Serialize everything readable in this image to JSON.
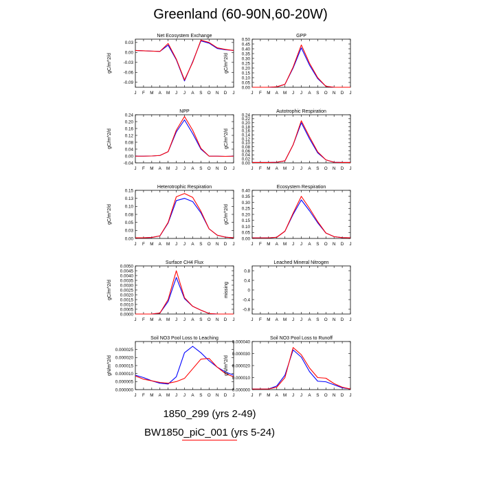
{
  "title": "Greenland (60-90N,60-20W)",
  "months": [
    "J",
    "F",
    "M",
    "A",
    "M",
    "J",
    "J",
    "A",
    "S",
    "O",
    "N",
    "D",
    "J"
  ],
  "colors": {
    "series1": "#0000ff",
    "series2": "#ff0000"
  },
  "legend": [
    {
      "label": "1850_299 (yrs 2-49)",
      "color": "#0000ff"
    },
    {
      "label": "BW1850_piC_001 (yrs 5-24)",
      "color": "#ff0000"
    }
  ],
  "chart_data": [
    {
      "type": "line",
      "title": "Net Ecosystem Exchange",
      "ylabel": "gC/m^2/d",
      "ylim": [
        -0.105,
        0.04
      ],
      "yticks": [
        0.03,
        0,
        -0.03,
        -0.06,
        -0.09
      ],
      "yticklabels": [
        "0.03",
        "0.00",
        "-0.03",
        "-0.06",
        "-0.09"
      ],
      "x": [
        1,
        2,
        3,
        4,
        5,
        6,
        7,
        8,
        9,
        10,
        11,
        12,
        13
      ],
      "series": [
        {
          "values": [
            0.006,
            0.005,
            0.004,
            0.003,
            0.022,
            -0.022,
            -0.086,
            -0.028,
            0.035,
            0.028,
            0.012,
            0.008,
            0.006
          ]
        },
        {
          "values": [
            0.006,
            0.005,
            0.004,
            0.003,
            0.027,
            -0.02,
            -0.083,
            -0.03,
            0.037,
            0.03,
            0.014,
            0.009,
            0.006
          ]
        }
      ]
    },
    {
      "type": "line",
      "title": "GPP",
      "ylabel": "gC/m^2/d",
      "ylim": [
        0,
        0.5
      ],
      "yticks": [
        0,
        0.05,
        0.1,
        0.15,
        0.2,
        0.25,
        0.3,
        0.35,
        0.4,
        0.45,
        0.5
      ],
      "yticklabels": [
        "0.00",
        "0.05",
        "0.10",
        "0.15",
        "0.20",
        "0.25",
        "0.30",
        "0.35",
        "0.40",
        "0.45",
        "0.50"
      ],
      "x": [
        1,
        2,
        3,
        4,
        5,
        6,
        7,
        8,
        9,
        10,
        11,
        12,
        13
      ],
      "series": [
        {
          "values": [
            0,
            0,
            0,
            0.005,
            0.03,
            0.2,
            0.41,
            0.23,
            0.09,
            0.01,
            0,
            0,
            0
          ]
        },
        {
          "values": [
            0,
            0,
            0,
            0.005,
            0.03,
            0.21,
            0.44,
            0.25,
            0.1,
            0.01,
            0,
            0,
            0
          ]
        }
      ]
    },
    {
      "type": "line",
      "title": "NPP",
      "ylabel": "gC/m^2/d",
      "ylim": [
        -0.04,
        0.24
      ],
      "yticks": [
        -0.04,
        0,
        0.04,
        0.08,
        0.12,
        0.16,
        0.2,
        0.24
      ],
      "yticklabels": [
        "-0.04",
        "0.00",
        "0.04",
        "0.08",
        "0.12",
        "0.16",
        "0.20",
        "0.24"
      ],
      "x": [
        1,
        2,
        3,
        4,
        5,
        6,
        7,
        8,
        9,
        10,
        11,
        12,
        13
      ],
      "series": [
        {
          "values": [
            -0.001,
            -0.001,
            0,
            0.003,
            0.025,
            0.14,
            0.21,
            0.13,
            0.04,
            -0.001,
            -0.001,
            -0.002,
            -0.001
          ]
        },
        {
          "values": [
            -0.001,
            -0.001,
            0,
            0.003,
            0.025,
            0.15,
            0.23,
            0.15,
            0.045,
            -0.001,
            -0.001,
            -0.002,
            -0.001
          ]
        }
      ]
    },
    {
      "type": "line",
      "title": "Autotrophic Respiration",
      "ylabel": "gC/m^2/d",
      "ylim": [
        0,
        0.24
      ],
      "yticks": [
        0,
        0.02,
        0.04,
        0.06,
        0.08,
        0.1,
        0.12,
        0.14,
        0.16,
        0.18,
        0.2,
        0.22,
        0.24
      ],
      "yticklabels": [
        "0.00",
        "0.02",
        "0.04",
        "0.06",
        "0.08",
        "0.10",
        "0.12",
        "0.14",
        "0.16",
        "0.18",
        "0.20",
        "0.22",
        "0.24"
      ],
      "x": [
        1,
        2,
        3,
        4,
        5,
        6,
        7,
        8,
        9,
        10,
        11,
        12,
        13
      ],
      "series": [
        {
          "values": [
            0.002,
            0.002,
            0.002,
            0.003,
            0.01,
            0.09,
            0.2,
            0.12,
            0.05,
            0.015,
            0.003,
            0.002,
            0.002
          ]
        },
        {
          "values": [
            0.002,
            0.002,
            0.002,
            0.003,
            0.01,
            0.09,
            0.21,
            0.13,
            0.055,
            0.015,
            0.003,
            0.002,
            0.002
          ]
        }
      ]
    },
    {
      "type": "line",
      "title": "Heterotrophic Respiration",
      "ylabel": "gC/m^2/d",
      "ylim": [
        0,
        0.15
      ],
      "yticks": [
        0,
        0.025,
        0.05,
        0.075,
        0.1,
        0.125,
        0.15
      ],
      "yticklabels": [
        "0.00",
        "0.03",
        "0.05",
        "0.08",
        "0.10",
        "0.13",
        "0.15"
      ],
      "x": [
        1,
        2,
        3,
        4,
        5,
        6,
        7,
        8,
        9,
        10,
        11,
        12,
        13
      ],
      "series": [
        {
          "values": [
            0.002,
            0.002,
            0.003,
            0.008,
            0.048,
            0.118,
            0.125,
            0.115,
            0.08,
            0.03,
            0.01,
            0.004,
            0.002
          ]
        },
        {
          "values": [
            0.002,
            0.002,
            0.003,
            0.008,
            0.05,
            0.13,
            0.14,
            0.128,
            0.085,
            0.03,
            0.01,
            0.004,
            0.002
          ]
        }
      ]
    },
    {
      "type": "line",
      "title": "Ecosystem Respiration",
      "ylabel": "gC/m^2/d",
      "ylim": [
        0,
        0.4
      ],
      "yticks": [
        0,
        0.05,
        0.1,
        0.15,
        0.2,
        0.25,
        0.3,
        0.35,
        0.4
      ],
      "yticklabels": [
        "0.00",
        "0.05",
        "0.10",
        "0.15",
        "0.20",
        "0.25",
        "0.30",
        "0.35",
        "0.40"
      ],
      "x": [
        1,
        2,
        3,
        4,
        5,
        6,
        7,
        8,
        9,
        10,
        11,
        12,
        13
      ],
      "series": [
        {
          "values": [
            0.005,
            0.005,
            0.005,
            0.01,
            0.06,
            0.2,
            0.32,
            0.23,
            0.13,
            0.045,
            0.015,
            0.007,
            0.005
          ]
        },
        {
          "values": [
            0.005,
            0.005,
            0.005,
            0.01,
            0.06,
            0.21,
            0.35,
            0.25,
            0.14,
            0.045,
            0.015,
            0.007,
            0.005
          ]
        }
      ]
    },
    {
      "type": "line",
      "title": "Surface CH4 Flux",
      "ylabel": "gC/m^2/d",
      "ylim": [
        0,
        0.005
      ],
      "yticks": [
        0,
        0.0005,
        0.001,
        0.0015,
        0.002,
        0.0025,
        0.003,
        0.0035,
        0.004,
        0.0045,
        0.005
      ],
      "yticklabels": [
        "0.0000",
        "0.0005",
        "0.0010",
        "0.0015",
        "0.0020",
        "0.0025",
        "0.0030",
        "0.0035",
        "0.0040",
        "0.0045",
        "0.0050"
      ],
      "x": [
        1,
        2,
        3,
        4,
        5,
        6,
        7,
        8,
        9,
        10,
        11,
        12,
        13
      ],
      "series": [
        {
          "values": [
            0,
            0,
            0,
            0.0001,
            0.0013,
            0.0038,
            0.0016,
            0.0008,
            0.0004,
            5e-05,
            0,
            0,
            0
          ]
        },
        {
          "values": [
            0,
            0,
            0,
            0.0001,
            0.0015,
            0.0045,
            0.0017,
            0.0008,
            0.0004,
            5e-05,
            0,
            0,
            0
          ]
        }
      ]
    },
    {
      "type": "line",
      "title": "Leached Mineral Nitrogen",
      "ylabel": "missing",
      "ylim": [
        -1,
        1
      ],
      "yticks": [
        -0.8,
        -0.4,
        0,
        0.4,
        0.8
      ],
      "yticklabels": [
        "-0.8",
        "-0.4",
        "0",
        "0.4",
        "0.8"
      ],
      "x": [
        1,
        2,
        3,
        4,
        5,
        6,
        7,
        8,
        9,
        10,
        11,
        12,
        13
      ],
      "series": []
    },
    {
      "type": "line",
      "title": "Soil NO3 Pool Loss to Leaching",
      "ylabel": "gN/m^2/d",
      "ylim": [
        0,
        3e-05
      ],
      "yticks": [
        0,
        5e-06,
        1e-05,
        1.5e-05,
        2e-05,
        2.5e-05
      ],
      "yticklabels": [
        "0.000000",
        "0.000005",
        "0.000010",
        "0.000015",
        "0.000020",
        "0.000025"
      ],
      "x": [
        1,
        2,
        3,
        4,
        5,
        6,
        7,
        8,
        9,
        10,
        11,
        12,
        13
      ],
      "series": [
        {
          "values": [
            9e-06,
            7.5e-06,
            5.5e-06,
            4e-06,
            3.5e-06,
            8e-06,
            2.3e-05,
            2.7e-05,
            2.3e-05,
            1.8e-05,
            1.4e-05,
            1.1e-05,
            9e-06
          ]
        },
        {
          "values": [
            8.5e-06,
            6.5e-06,
            5.5e-06,
            4.5e-06,
            4e-06,
            5e-06,
            7e-06,
            1.3e-05,
            1.9e-05,
            1.95e-05,
            1.4e-05,
            1e-05,
            8e-06
          ]
        }
      ]
    },
    {
      "type": "line",
      "title": "Soil NO3 Pool Loss to Runoff",
      "ylabel": "gN/m^2/d",
      "ylim": [
        0,
        4e-05
      ],
      "yticks": [
        0,
        1e-05,
        2e-05,
        3e-05,
        4e-05
      ],
      "yticklabels": [
        "0.000000",
        "0.000010",
        "0.000020",
        "0.000030",
        "0.000040"
      ],
      "x": [
        1,
        2,
        3,
        4,
        5,
        6,
        7,
        8,
        9,
        10,
        11,
        12,
        13
      ],
      "series": [
        {
          "values": [
            5e-07,
            5e-07,
            5e-07,
            3e-06,
            1.2e-05,
            3.3e-05,
            2.7e-05,
            1.5e-05,
            7e-06,
            6.5e-06,
            4e-06,
            1.5e-06,
            5e-07
          ]
        },
        {
          "values": [
            5e-07,
            5e-07,
            5e-07,
            2e-06,
            1e-05,
            3.5e-05,
            2.9e-05,
            1.8e-05,
            1e-05,
            9.5e-06,
            5e-06,
            2e-06,
            5e-07
          ]
        }
      ]
    }
  ]
}
